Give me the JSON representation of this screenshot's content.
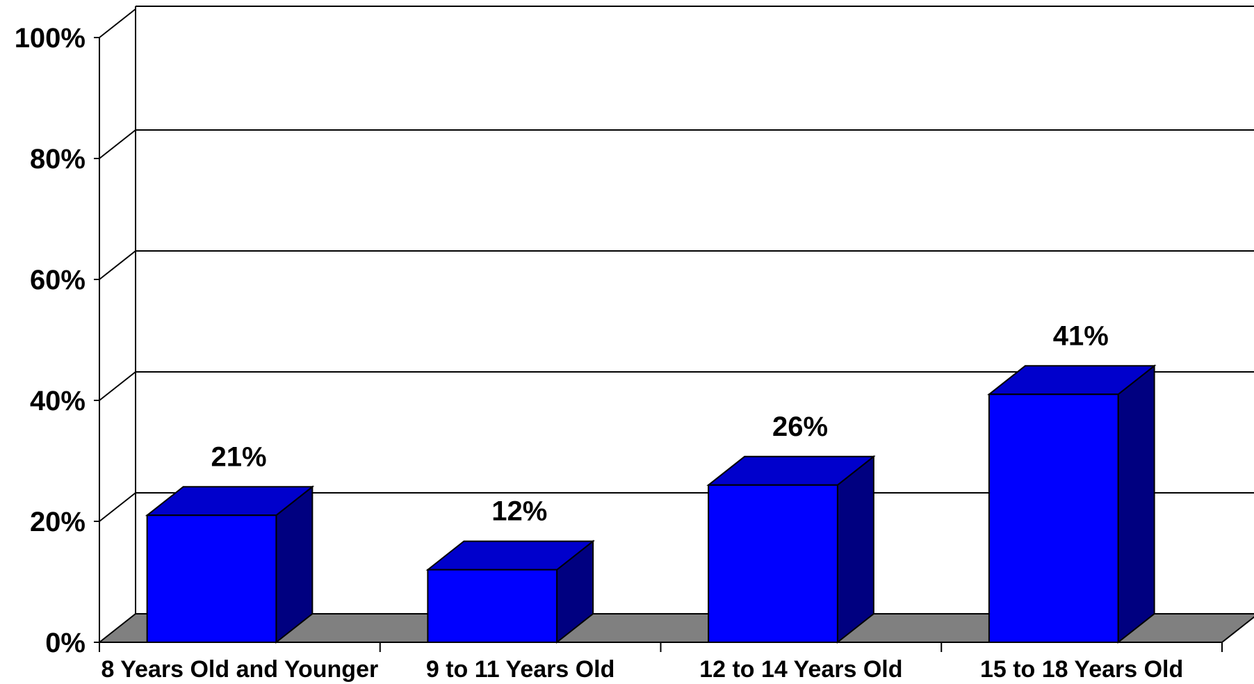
{
  "chart_data": {
    "type": "bar",
    "categories": [
      "8 Years Old and Younger",
      "9 to 11 Years Old",
      "12 to 14 Years Old",
      "15 to 18 Years Old"
    ],
    "values": [
      21,
      12,
      26,
      41
    ],
    "data_labels": [
      "21%",
      "12%",
      "26%",
      "41%"
    ],
    "ylim": [
      0,
      100
    ],
    "yticks": [
      0,
      20,
      40,
      60,
      80,
      100
    ],
    "ytick_labels": [
      "0%",
      "20%",
      "40%",
      "60%",
      "80%",
      "100%"
    ],
    "grid": true,
    "legend": "none",
    "style": "3d",
    "colors": {
      "bar_front": "#0000FF",
      "bar_top": "#0000CC",
      "bar_side": "#000080",
      "floor": "#808080"
    }
  }
}
